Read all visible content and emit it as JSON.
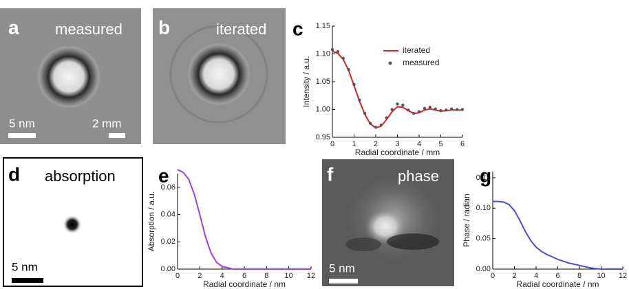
{
  "images": [
    {
      "panel_label": "a",
      "caption": "measured",
      "scale_labels": [
        "5 nm",
        "2 mm"
      ]
    },
    {
      "panel_label": "b",
      "caption": "iterated"
    },
    {
      "panel_label": "d",
      "caption": "absorption",
      "scale_labels": [
        "5 nm"
      ]
    },
    {
      "panel_label": "f",
      "caption": "phase",
      "scale_labels": [
        "5 nm"
      ]
    }
  ],
  "chart_data": [
    {
      "type": "line",
      "panel_label": "c",
      "x_label": "Radial coordinate / mm",
      "y_label": "Intensity / a.u.",
      "x": [
        0,
        0.25,
        0.5,
        0.75,
        1,
        1.25,
        1.5,
        1.75,
        2,
        2.25,
        2.5,
        2.75,
        3,
        3.25,
        3.5,
        3.75,
        4,
        4.25,
        4.5,
        4.75,
        5,
        5.25,
        5.5,
        5.75,
        6
      ],
      "series": [
        {
          "name": "iterated",
          "color": "#e02020",
          "style": "line",
          "values": [
            1.105,
            1.101,
            1.09,
            1.07,
            1.043,
            1.015,
            0.991,
            0.974,
            0.967,
            0.97,
            0.982,
            0.996,
            1.005,
            1.004,
            0.998,
            0.993,
            0.994,
            0.999,
            1.001,
            0.999,
            0.997,
            0.998,
            0.999,
            0.999,
            0.999
          ]
        },
        {
          "name": "measured",
          "color": "#555555",
          "style": "markers",
          "values": [
            1.108,
            1.104,
            1.092,
            1.072,
            1.045,
            1.017,
            0.993,
            0.975,
            0.968,
            0.972,
            0.985,
            1.0,
            1.01,
            1.008,
            0.999,
            0.993,
            0.996,
            1.002,
            1.004,
            1.001,
            0.998,
            0.999,
            1.001,
            1.0,
            1.0
          ]
        }
      ],
      "xlim": [
        0,
        6
      ],
      "xticks": [
        0,
        1,
        2,
        3,
        4,
        5,
        6
      ],
      "ylim": [
        0.95,
        1.15
      ],
      "yticks": [
        0.95,
        {
          "value": 1.0,
          "label": "1.00"
        },
        1.05,
        {
          "value": 1.1,
          "label": "1.10"
        },
        1.15
      ],
      "legend": "upper right"
    },
    {
      "type": "line",
      "panel_label": "e",
      "x_label": "Radial coordinate / nm",
      "y_label": "Absorption / a.u.",
      "x": [
        0,
        0.5,
        1,
        1.5,
        2,
        2.5,
        3,
        3.5,
        4,
        4.5,
        5,
        5.5,
        6,
        6.5,
        7,
        7.5,
        8,
        8.5,
        9,
        9.5,
        10,
        10.5,
        11,
        11.5,
        12
      ],
      "series": [
        {
          "name": null,
          "color": "#a040e0",
          "style": "line",
          "values": [
            0.073,
            0.071,
            0.066,
            0.055,
            0.04,
            0.024,
            0.012,
            0.005,
            0.002,
            0.001,
            0,
            0,
            0,
            0,
            0,
            0,
            0,
            0,
            0,
            0,
            0,
            0,
            0,
            0,
            0
          ]
        }
      ],
      "xlim": [
        0,
        12
      ],
      "xticks": [
        0,
        2,
        4,
        6,
        8,
        10,
        12
      ],
      "ylim": [
        0,
        0.07
      ],
      "yticks": [
        {
          "value": 0,
          "label": "0.00"
        },
        0.02,
        0.04,
        0.06
      ]
    },
    {
      "type": "line",
      "panel_label": "g",
      "x_label": "Radial coordinate / nm",
      "y_label": "Phase / radian",
      "x": [
        0,
        0.5,
        1,
        1.5,
        2,
        2.5,
        3,
        3.5,
        4,
        4.5,
        5,
        5.5,
        6,
        6.5,
        7,
        7.5,
        8,
        8.5,
        9,
        9.5,
        10,
        10.5,
        11,
        11.5,
        12
      ],
      "series": [
        {
          "name": null,
          "color": "#4a4ae0",
          "style": "line",
          "values": [
            0.111,
            0.111,
            0.11,
            0.106,
            0.096,
            0.08,
            0.062,
            0.047,
            0.036,
            0.029,
            0.024,
            0.02,
            0.016,
            0.013,
            0.01,
            0.008,
            0.006,
            0.004,
            0.002,
            0.001,
            0,
            0,
            0,
            0,
            0
          ]
        }
      ],
      "xlim": [
        0,
        12
      ],
      "xticks": [
        0,
        2,
        4,
        6,
        8,
        10,
        12
      ],
      "ylim": [
        0,
        0.16
      ],
      "yticks": [
        {
          "value": 0,
          "label": "0.00"
        },
        0.05,
        {
          "value": 0.1,
          "label": "0.10"
        },
        0.15
      ]
    }
  ]
}
